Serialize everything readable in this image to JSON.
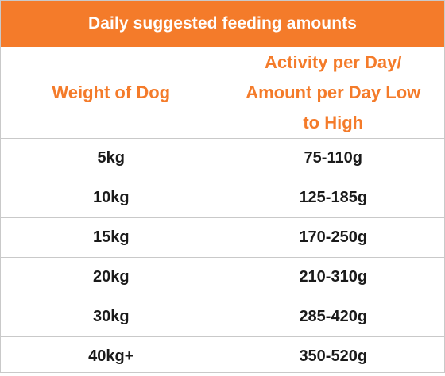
{
  "title": "Daily suggested feeding amounts",
  "columns": {
    "weight": "Weight of Dog",
    "activity": "Activity per Day/ Amount per Day Low to High"
  },
  "rows": [
    {
      "weight": "5kg",
      "amount": "75-110g"
    },
    {
      "weight": "10kg",
      "amount": "125-185g"
    },
    {
      "weight": "15kg",
      "amount": "170-250g"
    },
    {
      "weight": "20kg",
      "amount": "210-310g"
    },
    {
      "weight": "30kg",
      "amount": "285-420g"
    },
    {
      "weight": "40kg+",
      "amount": "350-520g"
    }
  ],
  "colors": {
    "accent": "#f47b2a",
    "text": "#1a1a1a",
    "border": "#c9c9c9"
  }
}
